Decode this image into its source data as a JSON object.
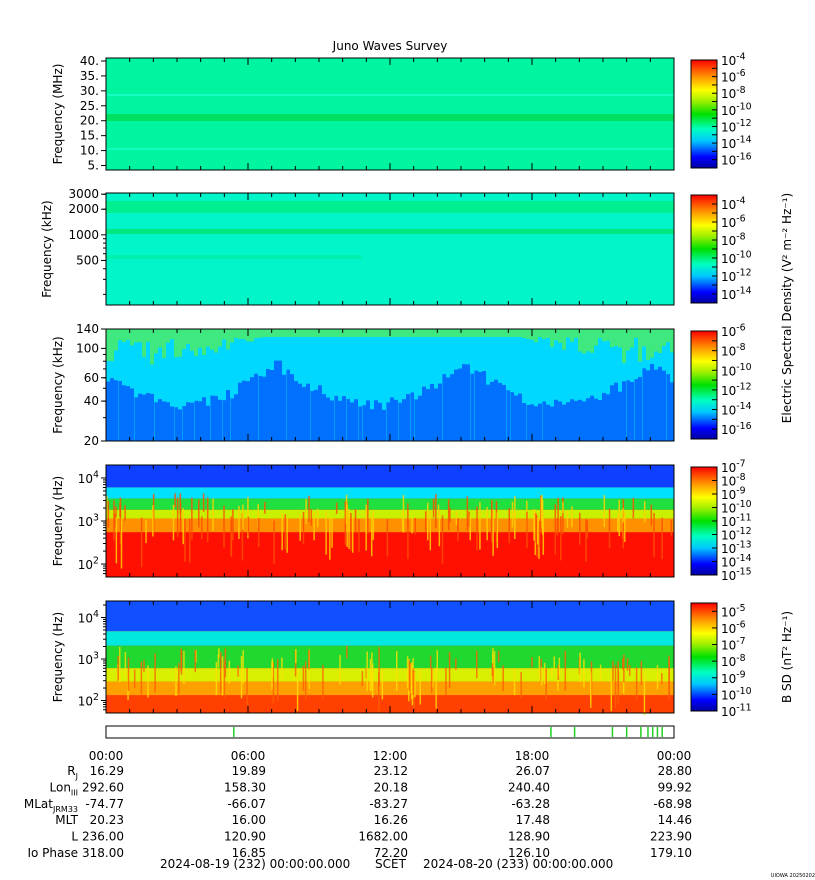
{
  "chart_data": {
    "type": "heatmap",
    "title": "Juno Waves Survey",
    "footer": {
      "start": "2024-08-19 (232) 00:00:00.000",
      "center": "SCET",
      "end": "2024-08-20 (233) 00:00:00.000",
      "credit": "UIOWA 20250202"
    },
    "shared_colorbar_label": "Electric Spectral Density (V² m⁻² Hz⁻¹)",
    "panels": [
      {
        "ylabel": "Frequency (MHz)",
        "scale": "linear",
        "ylim": [
          3.5,
          41
        ],
        "ticks": [
          {
            "v": 5,
            "t": "5."
          },
          {
            "v": 10,
            "t": "10."
          },
          {
            "v": 15,
            "t": "15."
          },
          {
            "v": 20,
            "t": "20."
          },
          {
            "v": 25,
            "t": "25."
          },
          {
            "v": 30,
            "t": "30."
          },
          {
            "v": 35,
            "t": "35."
          },
          {
            "v": 40,
            "t": "40."
          }
        ],
        "colorbar": {
          "exponents": [
            -4,
            -6,
            -8,
            -10,
            -12,
            -14,
            -16
          ],
          "range": [
            -17,
            -4
          ]
        }
      },
      {
        "ylabel": "Frequency (kHz)",
        "scale": "log",
        "ylim": [
          150,
          3100
        ],
        "ticks": [
          {
            "v": 3000,
            "t": "3000"
          },
          {
            "v": 2000,
            "t": "2000"
          },
          {
            "v": 1000,
            "t": "1000"
          },
          {
            "v": 500,
            "t": "500"
          }
        ],
        "colorbar": {
          "exponents": [
            -4,
            -6,
            -8,
            -10,
            -12,
            -14
          ],
          "range": [
            -15,
            -3
          ]
        }
      },
      {
        "ylabel": "Frequency (kHz)",
        "scale": "log",
        "ylim": [
          20,
          140
        ],
        "ticks": [
          {
            "v": 140,
            "t": "140"
          },
          {
            "v": 100,
            "t": "100"
          },
          {
            "v": 60,
            "t": "60"
          },
          {
            "v": 40,
            "t": "40"
          },
          {
            "v": 20,
            "t": "20"
          }
        ],
        "colorbar": {
          "exponents": [
            -6,
            -8,
            -10,
            -12,
            -14,
            -16
          ],
          "range": [
            -17,
            -6
          ]
        }
      },
      {
        "ylabel": "Frequency (Hz)",
        "scale": "log",
        "ylim": [
          50,
          20000
        ],
        "ticks": [
          {
            "v": 10000,
            "b": "10",
            "e": "4"
          },
          {
            "v": 1000,
            "b": "10",
            "e": "3"
          },
          {
            "v": 100,
            "b": "10",
            "e": "2"
          }
        ],
        "colorbar": {
          "exponents": [
            -7,
            -8,
            -9,
            -10,
            -11,
            -12,
            -13,
            -14,
            -15
          ],
          "range": [
            -15,
            -7
          ]
        }
      },
      {
        "ylabel": "Frequency (Hz)",
        "scale": "log",
        "ylim": [
          50,
          25000
        ],
        "ticks": [
          {
            "v": 10000,
            "b": "10",
            "e": "4"
          },
          {
            "v": 1000,
            "b": "10",
            "e": "3"
          },
          {
            "v": 100,
            "b": "10",
            "e": "2"
          }
        ],
        "colorbar": {
          "exponents": [
            -5,
            -6,
            -7,
            -8,
            -9,
            -10,
            -11
          ],
          "range": [
            -11,
            -4.5
          ],
          "label": "B SD (nT² Hz⁻¹)"
        }
      }
    ],
    "mode_bar": {
      "ticks_hours": [
        5.4,
        18.8,
        19.8,
        21.4,
        22.0,
        22.6,
        22.9,
        23.1,
        23.3,
        23.5
      ]
    },
    "time_axis": {
      "xlim": [
        0,
        24
      ],
      "labels": [
        {
          "h": 0,
          "t": "00:00"
        },
        {
          "h": 6,
          "t": "06:00"
        },
        {
          "h": 12,
          "t": "12:00"
        },
        {
          "h": 18,
          "t": "18:00"
        },
        {
          "h": 24,
          "t": "00:00"
        }
      ]
    },
    "ephemeris": [
      {
        "label": "R",
        "sub": "J",
        "values": [
          "16.29",
          "19.89",
          "23.12",
          "26.07",
          "28.80"
        ]
      },
      {
        "label": "Lon",
        "sub": "III",
        "values": [
          "292.60",
          "158.30",
          "20.18",
          "240.40",
          "99.92"
        ]
      },
      {
        "label": "MLat",
        "sub": "JRM33",
        "values": [
          "-74.77",
          "-66.07",
          "-83.27",
          "-63.28",
          "-68.98"
        ]
      },
      {
        "label": "MLT",
        "sub": "",
        "values": [
          "20.23",
          "16.00",
          "16.26",
          "17.48",
          "14.46"
        ]
      },
      {
        "label": "L",
        "sub": "",
        "values": [
          "236.00",
          "120.90",
          "1682.00",
          "128.90",
          "223.90"
        ]
      },
      {
        "label": "Io Phase",
        "sub": "",
        "values": [
          "318.00",
          "16.85",
          "72.20",
          "126.10",
          "179.10"
        ]
      }
    ]
  }
}
